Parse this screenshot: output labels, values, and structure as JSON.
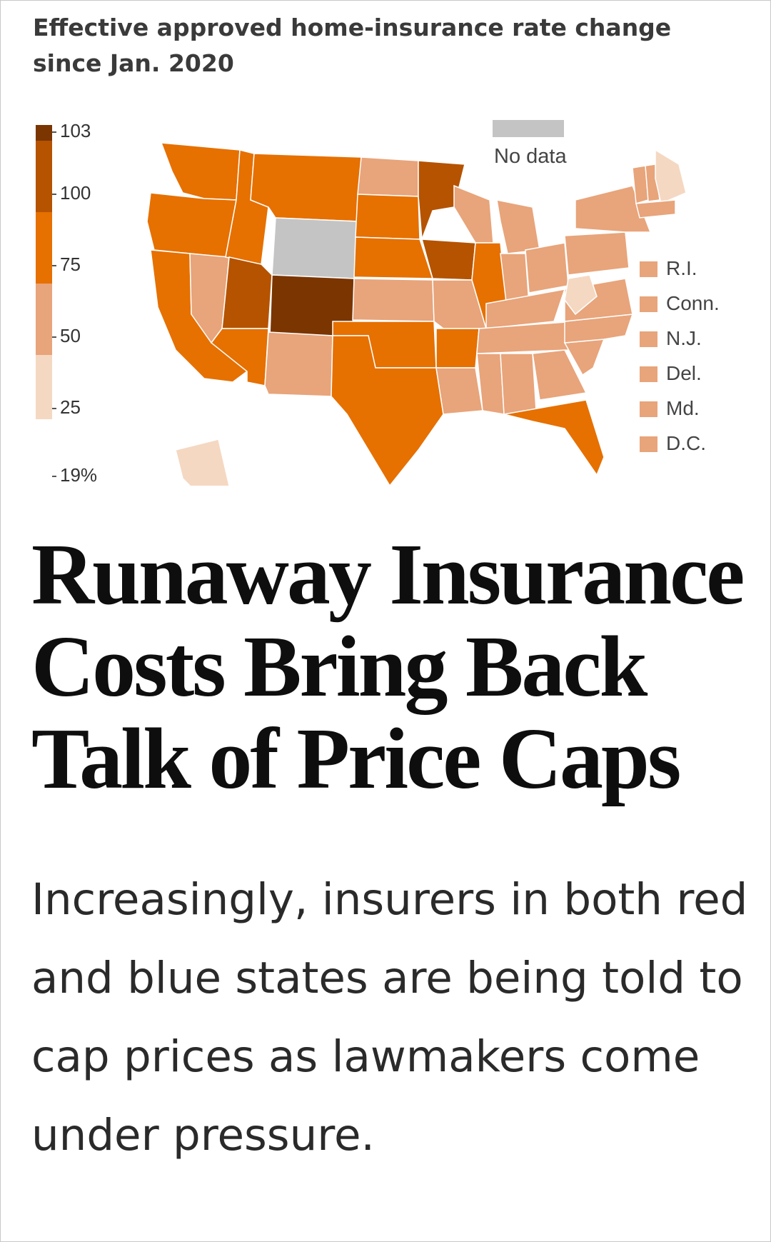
{
  "chart_data": {
    "type": "choropleth-map",
    "title": "Effective approved home-insurance rate change since Jan. 2020",
    "legend": {
      "scale_labels": [
        "103",
        "100",
        "75",
        "50",
        "25",
        "19%"
      ],
      "bins": [
        {
          "min": 100,
          "max": 103,
          "color": "#7a3500"
        },
        {
          "min": 75,
          "max": 100,
          "color": "#b55300"
        },
        {
          "min": 50,
          "max": 75,
          "color": "#e67000"
        },
        {
          "min": 25,
          "max": 50,
          "color": "#e8a47a"
        },
        {
          "min": 19,
          "max": 25,
          "color": "#f5d8c2"
        }
      ],
      "no_data_label": "No data",
      "no_data_color": "#c4c4c4"
    },
    "small_states": [
      {
        "label": "R.I.",
        "color": "#e8a47a"
      },
      {
        "label": "Conn.",
        "color": "#e8a47a"
      },
      {
        "label": "N.J.",
        "color": "#e8a47a"
      },
      {
        "label": "Del.",
        "color": "#e8a47a"
      },
      {
        "label": "Md.",
        "color": "#e8a47a"
      },
      {
        "label": "D.C.",
        "color": "#e8a47a"
      }
    ]
  },
  "article": {
    "headline": "Runaway Insurance Costs Bring Back Talk of Price Caps",
    "dek": "Increasingly, insurers in both red and blue states are being told to cap prices as lawmakers come under pressure."
  }
}
